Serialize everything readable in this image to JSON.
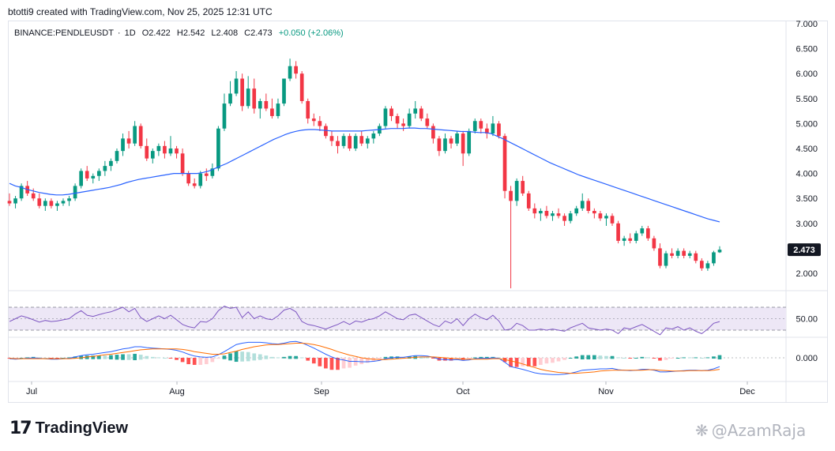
{
  "header": {
    "credit": "btotti9 created with TradingView.com, Nov 25, 2025 12:31 UTC"
  },
  "symbol": {
    "name": "BINANCE:PENDLEUSDT",
    "interval": "1D",
    "open": "O2.422",
    "high": "H2.542",
    "low": "L2.408",
    "close": "C2.473",
    "change": "+0.050 (+2.06%)"
  },
  "colors": {
    "up": "#089981",
    "down": "#f23645",
    "ma": "#2962ff",
    "rsi": "#7e57c2",
    "rsi_band": "#ede7f6",
    "macd": "#2962ff",
    "signal": "#ff6d00",
    "hist_up": "#26a69a",
    "hist_up_light": "#b2dfdb",
    "hist_down": "#ff5252",
    "hist_down_light": "#ffcdd2"
  },
  "chart_data": {
    "type": "candlestick",
    "price_axis": {
      "ticks": [
        "7.000",
        "6.500",
        "6.000",
        "5.500",
        "5.000",
        "4.500",
        "4.000",
        "3.500",
        "3.000",
        "2.000"
      ],
      "tick_values": [
        7.0,
        6.5,
        6.0,
        5.5,
        5.0,
        4.5,
        4.0,
        3.5,
        3.0,
        2.0
      ],
      "ylim": [
        1.7,
        7.05
      ]
    },
    "last_price_label": "2.473",
    "time_axis": {
      "labels": [
        "Jul",
        "Aug",
        "Sep",
        "Oct",
        "Nov",
        "Dec"
      ]
    },
    "candles_ohlc": [
      [
        3.45,
        3.6,
        3.35,
        3.4
      ],
      [
        3.4,
        3.55,
        3.3,
        3.5
      ],
      [
        3.5,
        3.8,
        3.45,
        3.75
      ],
      [
        3.75,
        3.85,
        3.55,
        3.6
      ],
      [
        3.6,
        3.7,
        3.45,
        3.5
      ],
      [
        3.5,
        3.6,
        3.3,
        3.35
      ],
      [
        3.35,
        3.5,
        3.25,
        3.45
      ],
      [
        3.45,
        3.5,
        3.3,
        3.35
      ],
      [
        3.35,
        3.45,
        3.25,
        3.4
      ],
      [
        3.4,
        3.5,
        3.35,
        3.45
      ],
      [
        3.45,
        3.55,
        3.35,
        3.5
      ],
      [
        3.5,
        3.8,
        3.45,
        3.75
      ],
      [
        3.75,
        4.1,
        3.7,
        4.05
      ],
      [
        4.05,
        4.15,
        3.85,
        3.9
      ],
      [
        3.9,
        4.0,
        3.8,
        3.95
      ],
      [
        3.95,
        4.1,
        3.85,
        4.05
      ],
      [
        4.05,
        4.25,
        3.95,
        4.15
      ],
      [
        4.15,
        4.3,
        4.05,
        4.25
      ],
      [
        4.25,
        4.5,
        4.2,
        4.45
      ],
      [
        4.45,
        4.8,
        4.35,
        4.7
      ],
      [
        4.7,
        4.85,
        4.5,
        4.6
      ],
      [
        4.6,
        5.05,
        4.55,
        4.95
      ],
      [
        4.95,
        5.0,
        4.5,
        4.55
      ],
      [
        4.55,
        4.7,
        4.25,
        4.3
      ],
      [
        4.3,
        4.5,
        4.2,
        4.45
      ],
      [
        4.45,
        4.6,
        4.35,
        4.55
      ],
      [
        4.55,
        4.65,
        4.3,
        4.4
      ],
      [
        4.4,
        4.75,
        4.35,
        4.5
      ],
      [
        4.5,
        4.55,
        4.3,
        4.4
      ],
      [
        4.4,
        4.5,
        3.95,
        4.0
      ],
      [
        4.0,
        4.05,
        3.75,
        3.8
      ],
      [
        3.8,
        3.9,
        3.7,
        3.75
      ],
      [
        3.75,
        4.05,
        3.7,
        4.0
      ],
      [
        4.0,
        4.1,
        3.85,
        3.95
      ],
      [
        3.95,
        4.2,
        3.9,
        4.1
      ],
      [
        4.1,
        4.95,
        4.05,
        4.9
      ],
      [
        4.9,
        5.6,
        4.85,
        5.4
      ],
      [
        5.4,
        5.85,
        5.35,
        5.6
      ],
      [
        5.6,
        6.05,
        5.55,
        5.9
      ],
      [
        5.9,
        6.0,
        5.25,
        5.35
      ],
      [
        5.35,
        5.95,
        5.3,
        5.7
      ],
      [
        5.7,
        5.9,
        5.2,
        5.3
      ],
      [
        5.3,
        5.5,
        5.1,
        5.45
      ],
      [
        5.45,
        5.6,
        5.25,
        5.3
      ],
      [
        5.3,
        5.5,
        5.1,
        5.15
      ],
      [
        5.15,
        5.5,
        5.1,
        5.4
      ],
      [
        5.4,
        5.9,
        5.35,
        5.9
      ],
      [
        5.9,
        6.3,
        5.85,
        6.15
      ],
      [
        6.15,
        6.25,
        5.9,
        6.0
      ],
      [
        6.0,
        6.05,
        5.4,
        5.45
      ],
      [
        5.45,
        5.5,
        5.0,
        5.1
      ],
      [
        5.1,
        5.2,
        4.95,
        5.05
      ],
      [
        5.05,
        5.15,
        4.85,
        4.95
      ],
      [
        4.95,
        5.0,
        4.7,
        4.75
      ],
      [
        4.75,
        4.85,
        4.55,
        4.65
      ],
      [
        4.65,
        4.75,
        4.4,
        4.55
      ],
      [
        4.55,
        4.8,
        4.5,
        4.75
      ],
      [
        4.75,
        4.8,
        4.45,
        4.5
      ],
      [
        4.5,
        4.8,
        4.45,
        4.75
      ],
      [
        4.75,
        4.85,
        4.55,
        4.6
      ],
      [
        4.6,
        4.75,
        4.5,
        4.7
      ],
      [
        4.7,
        4.85,
        4.6,
        4.8
      ],
      [
        4.8,
        5.0,
        4.75,
        4.95
      ],
      [
        4.95,
        5.35,
        4.9,
        5.3
      ],
      [
        5.3,
        5.35,
        5.05,
        5.15
      ],
      [
        5.15,
        5.2,
        4.9,
        5.0
      ],
      [
        5.0,
        5.1,
        4.85,
        4.95
      ],
      [
        4.95,
        5.3,
        4.9,
        5.2
      ],
      [
        5.2,
        5.45,
        5.1,
        5.3
      ],
      [
        5.3,
        5.35,
        5.05,
        5.1
      ],
      [
        5.1,
        5.2,
        4.9,
        4.95
      ],
      [
        4.95,
        5.0,
        4.6,
        4.7
      ],
      [
        4.7,
        4.75,
        4.35,
        4.45
      ],
      [
        4.45,
        4.8,
        4.4,
        4.7
      ],
      [
        4.7,
        4.75,
        4.5,
        4.6
      ],
      [
        4.6,
        4.85,
        4.55,
        4.8
      ],
      [
        4.8,
        4.85,
        4.15,
        4.4
      ],
      [
        4.4,
        4.9,
        4.35,
        4.85
      ],
      [
        4.85,
        5.1,
        4.8,
        5.05
      ],
      [
        5.05,
        5.1,
        4.8,
        4.9
      ],
      [
        4.9,
        5.0,
        4.7,
        4.8
      ],
      [
        4.8,
        5.15,
        4.75,
        5.0
      ],
      [
        5.0,
        5.05,
        4.7,
        4.75
      ],
      [
        4.75,
        4.8,
        3.5,
        3.65
      ],
      [
        3.65,
        3.75,
        1.7,
        3.45
      ],
      [
        3.45,
        3.9,
        3.35,
        3.85
      ],
      [
        3.85,
        3.95,
        3.55,
        3.6
      ],
      [
        3.6,
        3.65,
        3.25,
        3.3
      ],
      [
        3.3,
        3.4,
        3.1,
        3.2
      ],
      [
        3.2,
        3.3,
        3.05,
        3.25
      ],
      [
        3.25,
        3.35,
        3.1,
        3.15
      ],
      [
        3.15,
        3.25,
        3.05,
        3.2
      ],
      [
        3.2,
        3.3,
        3.1,
        3.15
      ],
      [
        3.15,
        3.2,
        2.95,
        3.05
      ],
      [
        3.05,
        3.25,
        3.0,
        3.2
      ],
      [
        3.2,
        3.35,
        3.15,
        3.3
      ],
      [
        3.3,
        3.6,
        3.25,
        3.45
      ],
      [
        3.45,
        3.5,
        3.2,
        3.25
      ],
      [
        3.25,
        3.3,
        3.1,
        3.2
      ],
      [
        3.2,
        3.25,
        3.05,
        3.1
      ],
      [
        3.1,
        3.2,
        2.95,
        3.15
      ],
      [
        3.15,
        3.2,
        2.95,
        3.0
      ],
      [
        3.0,
        3.05,
        2.6,
        2.65
      ],
      [
        2.65,
        2.75,
        2.55,
        2.7
      ],
      [
        2.7,
        2.8,
        2.6,
        2.65
      ],
      [
        2.65,
        2.85,
        2.6,
        2.8
      ],
      [
        2.8,
        2.95,
        2.75,
        2.9
      ],
      [
        2.9,
        2.95,
        2.65,
        2.7
      ],
      [
        2.7,
        2.75,
        2.45,
        2.5
      ],
      [
        2.5,
        2.6,
        2.1,
        2.15
      ],
      [
        2.15,
        2.45,
        2.1,
        2.4
      ],
      [
        2.4,
        2.5,
        2.3,
        2.35
      ],
      [
        2.35,
        2.5,
        2.3,
        2.45
      ],
      [
        2.45,
        2.5,
        2.3,
        2.35
      ],
      [
        2.35,
        2.45,
        2.3,
        2.4
      ],
      [
        2.4,
        2.45,
        2.2,
        2.25
      ],
      [
        2.25,
        2.3,
        2.05,
        2.1
      ],
      [
        2.1,
        2.25,
        2.05,
        2.2
      ],
      [
        2.2,
        2.45,
        2.15,
        2.42
      ],
      [
        2.42,
        2.542,
        2.408,
        2.473
      ]
    ],
    "ma50": [
      3.8,
      3.75,
      3.72,
      3.68,
      3.65,
      3.62,
      3.6,
      3.58,
      3.57,
      3.57,
      3.58,
      3.6,
      3.62,
      3.64,
      3.66,
      3.68,
      3.7,
      3.72,
      3.75,
      3.78,
      3.82,
      3.85,
      3.88,
      3.9,
      3.92,
      3.94,
      3.96,
      3.98,
      4.0,
      4.0,
      4.0,
      4.0,
      4.0,
      4.02,
      4.05,
      4.1,
      4.15,
      4.2,
      4.26,
      4.32,
      4.38,
      4.44,
      4.5,
      4.56,
      4.62,
      4.68,
      4.73,
      4.78,
      4.82,
      4.85,
      4.87,
      4.88,
      4.88,
      4.87,
      4.86,
      4.85,
      4.85,
      4.85,
      4.85,
      4.85,
      4.85,
      4.86,
      4.87,
      4.88,
      4.89,
      4.9,
      4.9,
      4.9,
      4.91,
      4.91,
      4.9,
      4.9,
      4.89,
      4.88,
      4.87,
      4.86,
      4.85,
      4.84,
      4.84,
      4.83,
      4.82,
      4.82,
      4.8,
      4.75,
      4.7,
      4.64,
      4.58,
      4.52,
      4.46,
      4.4,
      4.34,
      4.28,
      4.22,
      4.17,
      4.12,
      4.07,
      4.02,
      3.97,
      3.93,
      3.89,
      3.85,
      3.81,
      3.77,
      3.73,
      3.69,
      3.65,
      3.61,
      3.57,
      3.53,
      3.49,
      3.45,
      3.41,
      3.37,
      3.33,
      3.29,
      3.25,
      3.21,
      3.17,
      3.13,
      3.09,
      3.06,
      3.03
    ],
    "rsi": {
      "label": "50.00",
      "upper": 70,
      "lower": 30,
      "middle": 50,
      "values": [
        45,
        50,
        55,
        52,
        48,
        44,
        47,
        45,
        46,
        48,
        50,
        58,
        64,
        56,
        54,
        57,
        60,
        62,
        66,
        70,
        62,
        68,
        52,
        45,
        50,
        55,
        50,
        56,
        48,
        40,
        36,
        34,
        45,
        44,
        50,
        64,
        72,
        68,
        70,
        52,
        62,
        50,
        55,
        50,
        48,
        55,
        65,
        68,
        62,
        45,
        40,
        38,
        35,
        32,
        36,
        40,
        45,
        40,
        46,
        44,
        48,
        50,
        55,
        62,
        56,
        50,
        48,
        56,
        58,
        52,
        46,
        40,
        36,
        46,
        42,
        50,
        38,
        50,
        58,
        52,
        48,
        56,
        46,
        30,
        32,
        42,
        38,
        30,
        30,
        32,
        30,
        32,
        30,
        28,
        34,
        38,
        42,
        34,
        32,
        30,
        32,
        30,
        24,
        34,
        32,
        36,
        40,
        34,
        28,
        22,
        34,
        32,
        36,
        30,
        34,
        28,
        24,
        32,
        42,
        45
      ]
    },
    "macd": {
      "label": "0.000",
      "macd": [
        -0.02,
        -0.03,
        -0.02,
        -0.01,
        0.0,
        -0.01,
        -0.02,
        -0.03,
        -0.03,
        -0.02,
        -0.01,
        0.02,
        0.05,
        0.07,
        0.08,
        0.1,
        0.12,
        0.14,
        0.17,
        0.2,
        0.22,
        0.25,
        0.25,
        0.23,
        0.22,
        0.21,
        0.2,
        0.19,
        0.17,
        0.13,
        0.08,
        0.04,
        0.02,
        0.01,
        0.02,
        0.07,
        0.14,
        0.22,
        0.3,
        0.33,
        0.35,
        0.35,
        0.35,
        0.34,
        0.32,
        0.31,
        0.33,
        0.36,
        0.37,
        0.34,
        0.28,
        0.22,
        0.15,
        0.08,
        0.02,
        -0.03,
        -0.05,
        -0.08,
        -0.08,
        -0.09,
        -0.09,
        -0.08,
        -0.06,
        -0.02,
        0.0,
        0.01,
        0.01,
        0.03,
        0.05,
        0.05,
        0.04,
        0.01,
        -0.03,
        -0.04,
        -0.05,
        -0.04,
        -0.06,
        -0.05,
        -0.02,
        -0.01,
        -0.01,
        0.0,
        -0.01,
        -0.1,
        -0.2,
        -0.23,
        -0.26,
        -0.3,
        -0.34,
        -0.36,
        -0.37,
        -0.38,
        -0.38,
        -0.37,
        -0.35,
        -0.32,
        -0.28,
        -0.27,
        -0.26,
        -0.25,
        -0.25,
        -0.24,
        -0.27,
        -0.28,
        -0.29,
        -0.28,
        -0.26,
        -0.26,
        -0.28,
        -0.32,
        -0.32,
        -0.31,
        -0.3,
        -0.29,
        -0.28,
        -0.28,
        -0.29,
        -0.28,
        -0.25,
        -0.2
      ],
      "signal": [
        -0.01,
        -0.02,
        -0.02,
        -0.02,
        -0.02,
        -0.02,
        -0.02,
        -0.02,
        -0.02,
        -0.02,
        -0.02,
        -0.01,
        0.0,
        0.02,
        0.03,
        0.05,
        0.07,
        0.08,
        0.1,
        0.12,
        0.14,
        0.16,
        0.18,
        0.19,
        0.2,
        0.2,
        0.2,
        0.2,
        0.2,
        0.19,
        0.17,
        0.14,
        0.12,
        0.1,
        0.08,
        0.08,
        0.09,
        0.12,
        0.15,
        0.19,
        0.22,
        0.25,
        0.27,
        0.29,
        0.3,
        0.3,
        0.31,
        0.32,
        0.33,
        0.33,
        0.32,
        0.3,
        0.27,
        0.23,
        0.19,
        0.14,
        0.1,
        0.06,
        0.03,
        0.0,
        -0.02,
        -0.03,
        -0.04,
        -0.04,
        -0.03,
        -0.02,
        -0.01,
        0.0,
        0.01,
        0.02,
        0.02,
        0.02,
        0.01,
        0.0,
        -0.01,
        -0.02,
        -0.03,
        -0.03,
        -0.03,
        -0.03,
        -0.03,
        -0.02,
        -0.02,
        -0.04,
        -0.07,
        -0.1,
        -0.14,
        -0.18,
        -0.22,
        -0.26,
        -0.29,
        -0.31,
        -0.33,
        -0.34,
        -0.35,
        -0.35,
        -0.34,
        -0.33,
        -0.32,
        -0.3,
        -0.29,
        -0.28,
        -0.28,
        -0.28,
        -0.28,
        -0.28,
        -0.28,
        -0.27,
        -0.27,
        -0.28,
        -0.29,
        -0.3,
        -0.3,
        -0.3,
        -0.29,
        -0.29,
        -0.29,
        -0.29,
        -0.28,
        -0.26
      ]
    }
  },
  "footer": {
    "logo_mark": "17",
    "logo_text": "TradingView"
  },
  "watermark": {
    "text": "@AzamRaja"
  }
}
